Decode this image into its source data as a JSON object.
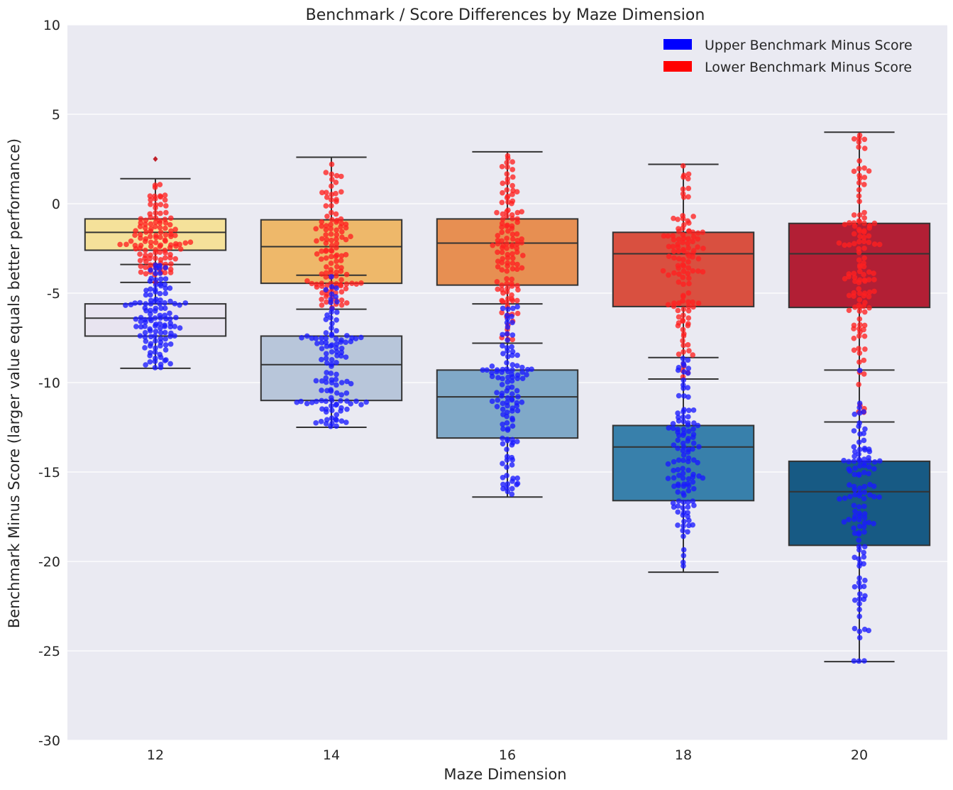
{
  "chart_data": {
    "type": "box",
    "title": "Benchmark / Score Differences by Maze Dimension",
    "xlabel": "Maze Dimension",
    "ylabel": "Benchmark Minus Score (larger value equals better performance)",
    "categories": [
      "12",
      "14",
      "16",
      "18",
      "20"
    ],
    "ylim": [
      -30,
      10
    ],
    "yticks": [
      10,
      5,
      0,
      -5,
      -10,
      -15,
      -20,
      -25,
      -30
    ],
    "grid": true,
    "legend_position": "top-right",
    "legend": [
      {
        "label": "Upper Benchmark Minus Score",
        "color": "#0000ff"
      },
      {
        "label": "Lower Benchmark Minus Score",
        "color": "#ff0000"
      }
    ],
    "series": [
      {
        "name": "Lower Benchmark Minus Score",
        "point_color": "#ff2020",
        "box_colors": [
          "#f5e19a",
          "#eeb86a",
          "#e78f52",
          "#d95040",
          "#b21f35"
        ],
        "boxes": [
          {
            "whisker_low": -4.4,
            "q1": -2.6,
            "median": -1.6,
            "q3": -0.85,
            "whisker_high": 1.4,
            "outliers": [
              2.5
            ]
          },
          {
            "whisker_low": -5.9,
            "q1": -4.45,
            "median": -2.4,
            "q3": -0.9,
            "whisker_high": 2.6,
            "outliers": []
          },
          {
            "whisker_low": -7.8,
            "q1": -4.55,
            "median": -2.2,
            "q3": -0.85,
            "whisker_high": 2.9,
            "outliers": []
          },
          {
            "whisker_low": -9.8,
            "q1": -5.75,
            "median": -2.8,
            "q3": -1.6,
            "whisker_high": 2.2,
            "outliers": []
          },
          {
            "whisker_low": -12.2,
            "q1": -5.8,
            "median": -2.8,
            "q3": -1.1,
            "whisker_high": 4.0,
            "outliers": []
          }
        ]
      },
      {
        "name": "Upper Benchmark Minus Score",
        "point_color": "#1a1aff",
        "box_colors": [
          "#e8e4f0",
          "#b8c6da",
          "#80a9c8",
          "#3880ab",
          "#175a84"
        ],
        "boxes": [
          {
            "whisker_low": -9.2,
            "q1": -7.4,
            "median": -6.4,
            "q3": -5.6,
            "whisker_high": -3.4,
            "outliers": []
          },
          {
            "whisker_low": -12.5,
            "q1": -11.0,
            "median": -9.0,
            "q3": -7.4,
            "whisker_high": -4.0,
            "outliers": []
          },
          {
            "whisker_low": -16.4,
            "q1": -13.1,
            "median": -10.8,
            "q3": -9.3,
            "whisker_high": -5.6,
            "outliers": []
          },
          {
            "whisker_low": -20.6,
            "q1": -16.6,
            "median": -13.6,
            "q3": -12.4,
            "whisker_high": -8.6,
            "outliers": []
          },
          {
            "whisker_low": -25.6,
            "q1": -19.1,
            "median": -16.1,
            "q3": -14.4,
            "whisker_high": -9.3,
            "outliers": []
          }
        ]
      }
    ]
  }
}
